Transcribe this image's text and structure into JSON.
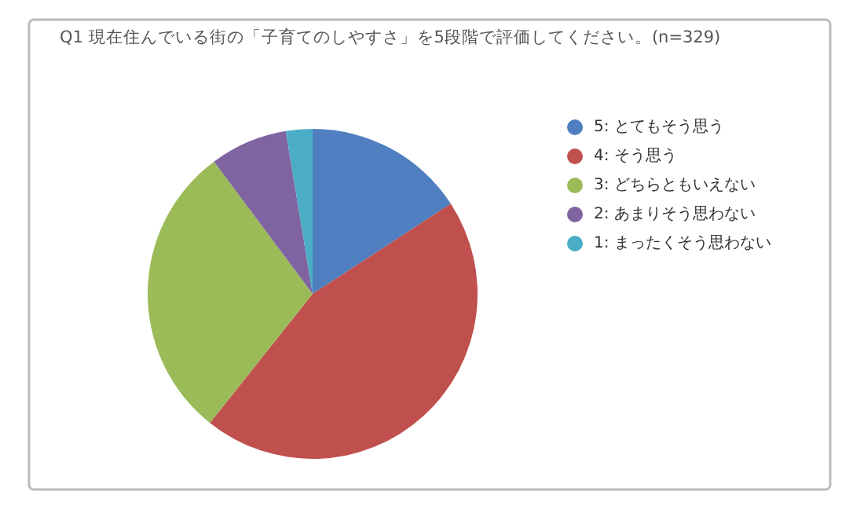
{
  "chart_data": {
    "type": "pie",
    "title": "Q1 現在住んでいる街の「子育てのしやすさ」を5段階で評価してください。(n=329)",
    "categories": [
      "5: とてもそう思う",
      "4: そう思う",
      "3: どちらともいえない",
      "2: あまりそう思わない",
      "1: まったくそう思わない"
    ],
    "values": [
      15.8,
      44.9,
      29.1,
      7.6,
      2.6
    ],
    "colors": [
      "#4f7fc0",
      "#c0504d",
      "#9bbb59",
      "#8064a2",
      "#4bacc6"
    ],
    "legend": "right"
  }
}
